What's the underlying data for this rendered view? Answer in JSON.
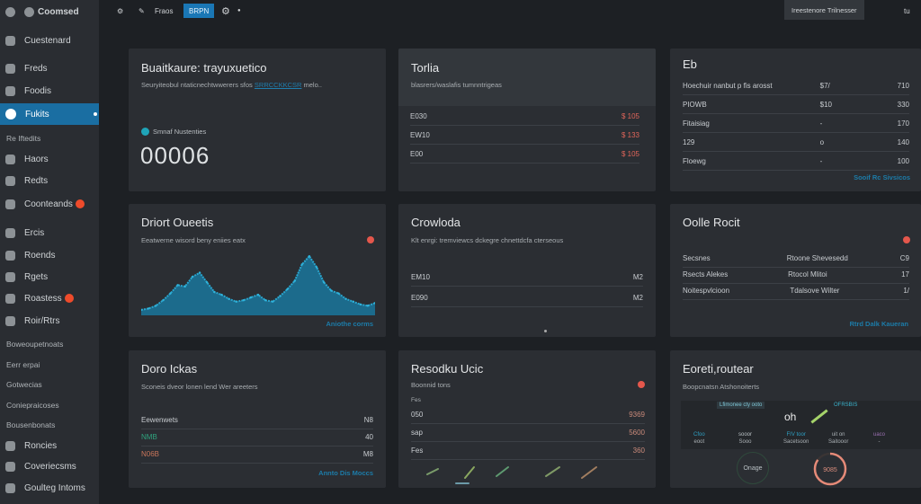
{
  "app": {
    "logo": "Coomsed"
  },
  "topbar": {
    "item1": "Fraos",
    "button": "BRPN",
    "right_button": "Ireestenore Trilnesser",
    "right_text": "tu"
  },
  "sidebar": {
    "items": [
      {
        "label": "Cuestenard",
        "top": 45
      },
      {
        "label": "Freds"
      },
      {
        "label": "Foodis"
      },
      {
        "label": "Fukits",
        "active": true
      },
      {
        "label": "Re Iftedits",
        "section": true
      },
      {
        "label": "Haors"
      },
      {
        "label": "Redts"
      },
      {
        "label": "Coonteands",
        "badge": true
      },
      {
        "label": "Ercis"
      },
      {
        "label": "Roends"
      },
      {
        "label": "Rgets"
      },
      {
        "label": "Roastess",
        "badge": true
      },
      {
        "label": "Roir/Rtrs"
      },
      {
        "label": "Boweoupetnoats",
        "section": true
      },
      {
        "label": "Eerr erpai",
        "section": true
      },
      {
        "label": "Gotwecias",
        "section": true
      },
      {
        "label": "Coniepraicoses",
        "section": true
      },
      {
        "label": "Bousenbonats",
        "section": true
      },
      {
        "label": "Roncies"
      },
      {
        "label": "Coveriecsms"
      },
      {
        "label": "Goulteg Intoms"
      }
    ]
  },
  "cards": {
    "c1": {
      "title": "Buaitkaure: trayuxuetico",
      "subtitle": "Seuryiteobul ntaticnechtwwerers sfos",
      "subtitle_link": "SRRCCKKCSR",
      "subtitle_tail": "melo..",
      "stat_label": "Smnaf Nustenties",
      "stat_value": "00006"
    },
    "c2": {
      "title": "Torlia",
      "subtitle": "blasrers/waslafis tumnntrigeas",
      "rows": [
        {
          "label": "E030",
          "value": "$ 105"
        },
        {
          "label": "EW10",
          "value": "$ 133"
        },
        {
          "label": "E00",
          "value": "$ 105"
        }
      ]
    },
    "c3": {
      "title": "Eb",
      "rows": [
        {
          "label": "Hoechuir nanbut p fis arosst",
          "mid": "$7/",
          "value": "710"
        },
        {
          "label": "PIOWB",
          "mid": "$10",
          "value": "330"
        },
        {
          "label": "Fitaisiag",
          "mid": "-",
          "value": "170"
        },
        {
          "label": "129",
          "mid": "o",
          "value": "140"
        },
        {
          "label": "Floewg",
          "mid": "-",
          "value": "100"
        }
      ],
      "link": "Sooif Rc Sivsicos"
    },
    "c4": {
      "title": "Driort Oueetis",
      "subtitle": "Eeatwerne wisord beny eniies eatx",
      "link": "Aniothe corms"
    },
    "c5": {
      "title": "Crowloda",
      "subtitle": "Klt enrgi: tremviewcs dckegre chnettdcfa cterseous",
      "rows": [
        {
          "label": "EM10",
          "value": "M2"
        },
        {
          "label": "E090",
          "value": "M2"
        }
      ]
    },
    "c6": {
      "title": "Oolle Rocit",
      "rows": [
        {
          "a": "Secsnes",
          "b": "Rtoone Shevesedd",
          "c": "C9"
        },
        {
          "a": "Rsects Alekes",
          "b": "Rtocol Mlitoi",
          "c": "17"
        },
        {
          "a": "Noitespvlcioon",
          "b": "Tdalsove Wilter",
          "c": "1/"
        }
      ],
      "link": "Rtrd Dalk Kaueran"
    },
    "c7": {
      "title": "Doro Ickas",
      "subtitle": "Sconeis dveor lonen lend Wer areeters",
      "rows": [
        {
          "label": "Eewenwets",
          "value": "N8"
        },
        {
          "label": "NMB",
          "value": "40"
        },
        {
          "label": "N06B",
          "value": "M8"
        }
      ],
      "link": "Annto Dis Moccs"
    },
    "c8": {
      "title": "Resodku Ucic",
      "subtitle": "Boonnid tons",
      "ylabel": "Fes",
      "rows": [
        {
          "label": "050",
          "value": "9369"
        },
        {
          "label": "sap",
          "value": "5600"
        },
        {
          "label": "Fes",
          "value": "360"
        }
      ]
    },
    "c9": {
      "title": "Eoreti,routear",
      "subtitle": "Boopcnatsn Atshonoiterts",
      "banner": "Lfimonee cty ooto",
      "banner_right": "OFRSBIS",
      "mark": "oh",
      "cols": [
        {
          "t": "Cfoo",
          "b": "eoot"
        },
        {
          "t": "sooor",
          "b": "Sooo"
        },
        {
          "t": "FIV toor",
          "b": "Sacetsoon"
        },
        {
          "t": "uit on",
          "b": "Saitooor"
        },
        {
          "t": "uaco",
          "b": "-"
        }
      ],
      "circle_label": "Onage",
      "gauge_value": "9085",
      "gauge_fraction": 0.85
    }
  },
  "chart_data": {
    "type": "area",
    "values": [
      2,
      3,
      5,
      9,
      14,
      20,
      19,
      26,
      29,
      22,
      15,
      13,
      10,
      8,
      9,
      11,
      13,
      9,
      8,
      12,
      17,
      23,
      35,
      41,
      33,
      22,
      16,
      14,
      10,
      8,
      6,
      5,
      7
    ]
  },
  "colors": {
    "accent": "#1a6ea2",
    "alert": "#ee4b2b",
    "chart": "#1d7fa6"
  }
}
